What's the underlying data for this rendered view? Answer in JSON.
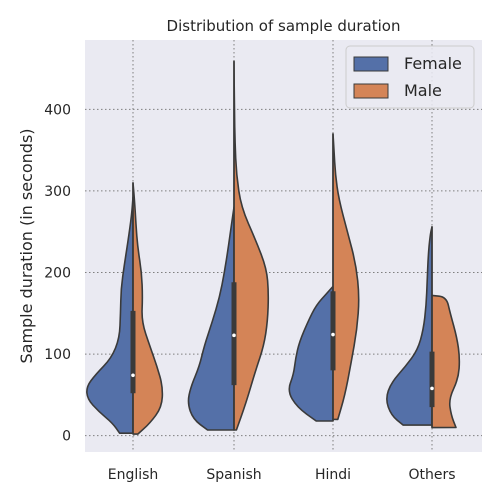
{
  "chart_data": {
    "type": "violin",
    "title": "Distribution of sample duration",
    "xlabel": "",
    "ylabel": "Sample duration (in seconds)",
    "categories": [
      "English",
      "Spanish",
      "Hindi",
      "Others"
    ],
    "ylim": [
      -20,
      485
    ],
    "yticks": [
      0,
      100,
      200,
      300,
      400
    ],
    "grid": true,
    "grid_style": "dotted",
    "split": true,
    "legend_position": "top-right",
    "series": [
      {
        "name": "Female",
        "color": "#5470a8",
        "violins": [
          {
            "min": 3,
            "max": 292,
            "q1": 52,
            "median": 74,
            "q3": 153,
            "profile": [
              [
                3,
                0.28
              ],
              [
                15,
                0.42
              ],
              [
                30,
                0.72
              ],
              [
                45,
                0.95
              ],
              [
                60,
                0.97
              ],
              [
                75,
                0.78
              ],
              [
                95,
                0.45
              ],
              [
                120,
                0.28
              ],
              [
                150,
                0.26
              ],
              [
                180,
                0.25
              ],
              [
                210,
                0.18
              ],
              [
                240,
                0.1
              ],
              [
                270,
                0.03
              ],
              [
                292,
                0
              ]
            ]
          },
          {
            "min": 7,
            "max": 280,
            "q1": 62,
            "median": 123,
            "q3": 188,
            "profile": [
              [
                7,
                0.55
              ],
              [
                20,
                0.85
              ],
              [
                40,
                0.97
              ],
              [
                60,
                0.9
              ],
              [
                85,
                0.72
              ],
              [
                110,
                0.62
              ],
              [
                140,
                0.45
              ],
              [
                170,
                0.3
              ],
              [
                200,
                0.2
              ],
              [
                230,
                0.12
              ],
              [
                260,
                0.05
              ],
              [
                280,
                0
              ]
            ]
          },
          {
            "min": 18,
            "max": 183,
            "q1": 80,
            "median": 124,
            "q3": 177,
            "profile": [
              [
                18,
                0.35
              ],
              [
                35,
                0.75
              ],
              [
                55,
                0.95
              ],
              [
                75,
                0.82
              ],
              [
                95,
                0.78
              ],
              [
                115,
                0.7
              ],
              [
                140,
                0.52
              ],
              [
                160,
                0.35
              ],
              [
                175,
                0.12
              ],
              [
                183,
                0
              ]
            ]
          },
          {
            "min": 13,
            "max": 256,
            "q1": 35,
            "median": 58,
            "q3": 103,
            "profile": [
              [
                13,
                0.6
              ],
              [
                25,
                0.85
              ],
              [
                45,
                0.97
              ],
              [
                65,
                0.85
              ],
              [
                85,
                0.55
              ],
              [
                105,
                0.3
              ],
              [
                130,
                0.18
              ],
              [
                160,
                0.12
              ],
              [
                190,
                0.1
              ],
              [
                220,
                0.08
              ],
              [
                245,
                0.04
              ],
              [
                256,
                0
              ]
            ]
          }
        ]
      },
      {
        "name": "Male",
        "color": "#d48457",
        "violins": [
          {
            "min": 2,
            "max": 310,
            "q1": 52,
            "median": 74,
            "q3": 153,
            "profile": [
              [
                2,
                0.1
              ],
              [
                15,
                0.35
              ],
              [
                35,
                0.6
              ],
              [
                60,
                0.62
              ],
              [
                85,
                0.5
              ],
              [
                110,
                0.35
              ],
              [
                140,
                0.18
              ],
              [
                170,
                0.2
              ],
              [
                200,
                0.18
              ],
              [
                230,
                0.1
              ],
              [
                260,
                0.06
              ],
              [
                290,
                0.03
              ],
              [
                310,
                0
              ]
            ]
          },
          {
            "min": 7,
            "max": 459,
            "q1": 62,
            "median": 123,
            "q3": 188,
            "profile": [
              [
                7,
                0.05
              ],
              [
                40,
                0.25
              ],
              [
                80,
                0.45
              ],
              [
                110,
                0.62
              ],
              [
                140,
                0.7
              ],
              [
                175,
                0.72
              ],
              [
                205,
                0.68
              ],
              [
                240,
                0.45
              ],
              [
                280,
                0.15
              ],
              [
                320,
                0.05
              ],
              [
                360,
                0.02
              ],
              [
                400,
                0.01
              ],
              [
                459,
                0
              ]
            ]
          },
          {
            "min": 20,
            "max": 370,
            "q1": 80,
            "median": 124,
            "q3": 177,
            "profile": [
              [
                20,
                0.1
              ],
              [
                50,
                0.25
              ],
              [
                90,
                0.38
              ],
              [
                130,
                0.5
              ],
              [
                170,
                0.55
              ],
              [
                210,
                0.48
              ],
              [
                250,
                0.3
              ],
              [
                290,
                0.12
              ],
              [
                320,
                0.05
              ],
              [
                350,
                0.02
              ],
              [
                370,
                0
              ]
            ]
          },
          {
            "min": 10,
            "max": 172,
            "q1": 35,
            "median": 58,
            "q3": 103,
            "profile": [
              [
                10,
                0.5
              ],
              [
                25,
                0.4
              ],
              [
                45,
                0.35
              ],
              [
                70,
                0.55
              ],
              [
                95,
                0.58
              ],
              [
                120,
                0.52
              ],
              [
                150,
                0.38
              ],
              [
                170,
                0.3
              ],
              [
                172,
                0
              ]
            ]
          }
        ]
      }
    ]
  },
  "colors": {
    "plot_bg": "#eaeaf2",
    "grid": "#7f7f7f",
    "outline": "#3a3a3a",
    "legend_border": "#cccccc"
  }
}
